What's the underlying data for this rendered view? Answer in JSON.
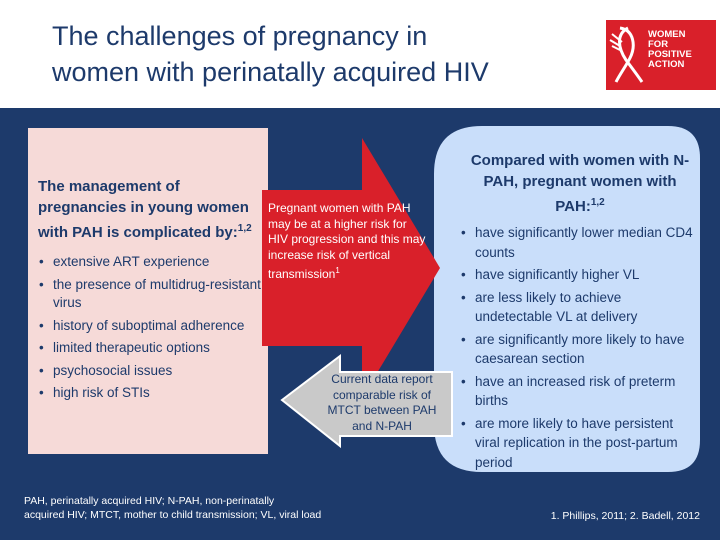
{
  "title": {
    "line1": "The challenges of pregnancy in",
    "line2": "women with perinatally acquired HIV"
  },
  "logo": {
    "line1": "WOMEN",
    "line2": "FOR",
    "line3": "POSITIVE",
    "line4": "ACTION",
    "icon": "red-ribbon-icon"
  },
  "left": {
    "heading": "The management of pregnancies in young women with PAH is complicated by:",
    "heading_sup": "1,2",
    "bullets": [
      "extensive ART experience",
      "the presence of multidrug-resistant virus",
      "history of suboptimal adherence",
      "limited therapeutic options",
      "psychosocial issues",
      "high risk of STIs"
    ]
  },
  "red_arrow": {
    "text": "Pregnant women with PAH may be at a higher risk for HIV progression and this may increase risk of vertical transmission",
    "sup": "1"
  },
  "grey_arrow": {
    "text": "Current data report comparable risk of MTCT between PAH and N-PAH"
  },
  "right": {
    "heading": "Compared with women with N-PAH, pregnant women with PAH:",
    "heading_sup": "1,2",
    "bullets": [
      "have significantly lower median CD4 counts",
      "have significantly higher VL",
      "are less likely to achieve undetectable VL at delivery",
      "are significantly more likely to have caesarean section",
      "have an increased risk of preterm births",
      "are more likely to have persistent viral replication in the post-partum period"
    ]
  },
  "footnote": {
    "line1": "PAH, perinatally acquired HIV; N-PAH, non-perinatally",
    "line2": "acquired HIV; MTCT, mother to child transmission; VL, viral load"
  },
  "references": "1. Phillips, 2011; 2. Badell, 2012",
  "colors": {
    "background": "#1d3a6b",
    "left_panel": "#f6dad8",
    "right_panel": "#c9defa",
    "red_arrow": "#d9202a",
    "grey_arrow": "#c9c9c9"
  }
}
